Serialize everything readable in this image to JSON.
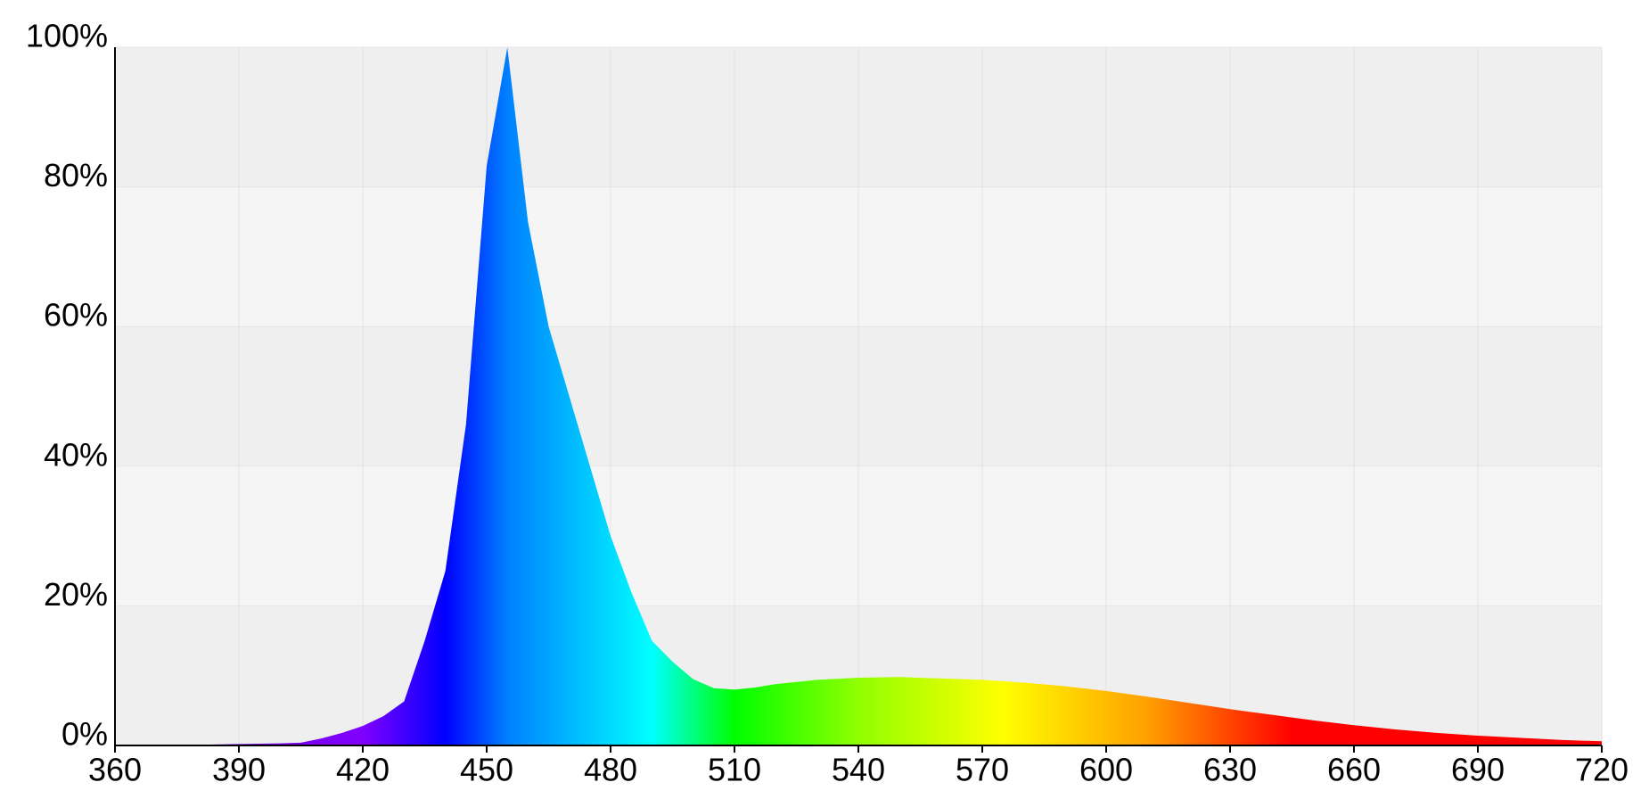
{
  "chart_data": {
    "type": "area",
    "x": [
      360,
      370,
      380,
      390,
      400,
      405,
      410,
      415,
      420,
      425,
      430,
      435,
      440,
      445,
      450,
      455,
      460,
      465,
      470,
      475,
      480,
      485,
      490,
      495,
      500,
      505,
      510,
      515,
      520,
      530,
      540,
      550,
      560,
      570,
      580,
      590,
      600,
      610,
      620,
      630,
      640,
      650,
      660,
      670,
      680,
      690,
      700,
      710,
      720
    ],
    "values": [
      0,
      0,
      0.1,
      0.2,
      0.3,
      0.4,
      1,
      1.8,
      2.8,
      4.2,
      6.3,
      15,
      25,
      46,
      83,
      100,
      75,
      60,
      50,
      40,
      30,
      22,
      15,
      12,
      9.5,
      8.2,
      8,
      8.3,
      8.8,
      9.4,
      9.7,
      9.8,
      9.6,
      9.4,
      9,
      8.5,
      7.8,
      7,
      6.1,
      5.2,
      4.4,
      3.6,
      2.9,
      2.3,
      1.8,
      1.4,
      1.1,
      0.8,
      0.6
    ],
    "gradient_stops": [
      {
        "x": 360,
        "color": "#6000c0"
      },
      {
        "x": 420,
        "color": "#8000ff"
      },
      {
        "x": 440,
        "color": "#0000ff"
      },
      {
        "x": 455,
        "color": "#0080ff"
      },
      {
        "x": 490,
        "color": "#00ffff"
      },
      {
        "x": 510,
        "color": "#00ff00"
      },
      {
        "x": 540,
        "color": "#90ff00"
      },
      {
        "x": 575,
        "color": "#ffff00"
      },
      {
        "x": 610,
        "color": "#ffa000"
      },
      {
        "x": 645,
        "color": "#ff0000"
      },
      {
        "x": 720,
        "color": "#ff0000"
      }
    ],
    "xlim": [
      360,
      720
    ],
    "xticks": [
      360,
      390,
      420,
      450,
      480,
      510,
      540,
      570,
      600,
      630,
      660,
      690,
      720
    ],
    "ylim": [
      0,
      100
    ],
    "yticks": [
      {
        "value": 0,
        "label": "0%"
      },
      {
        "value": 20,
        "label": "20%"
      },
      {
        "value": 40,
        "label": "40%"
      },
      {
        "value": 60,
        "label": "60%"
      },
      {
        "value": 80,
        "label": "80%"
      },
      {
        "value": 100,
        "label": "100%"
      }
    ],
    "grid": true
  }
}
